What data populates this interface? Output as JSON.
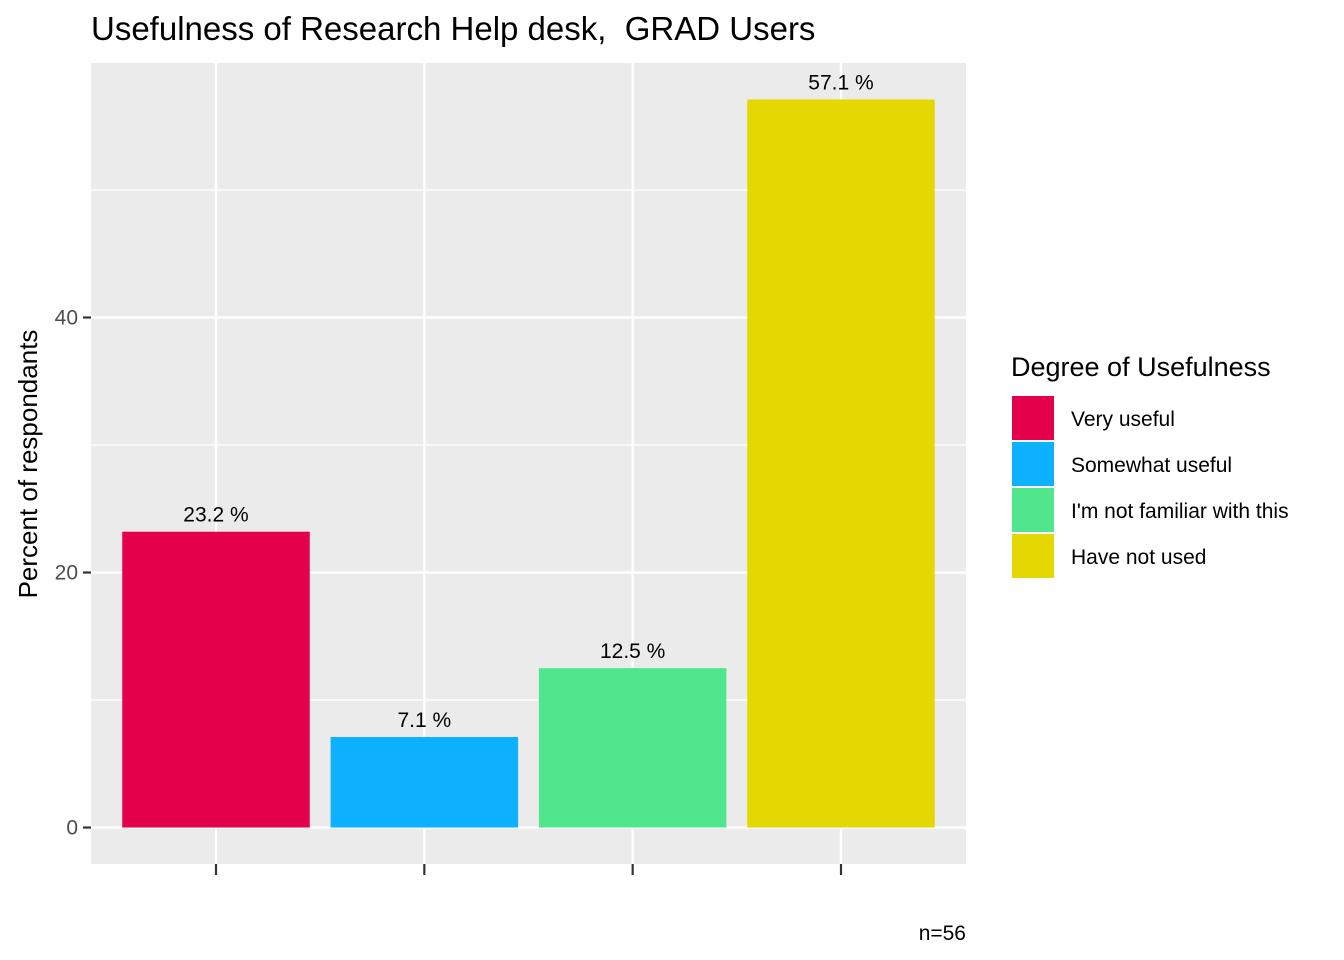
{
  "chart_data": {
    "type": "bar",
    "title": "Usefulness of Research Help desk,  GRAD Users",
    "xlabel": "",
    "ylabel": "Percent of respondants",
    "categories": [
      "Very useful",
      "Somewhat useful",
      "I'm not familiar with this",
      "Have not used"
    ],
    "values": [
      23.2,
      7.1,
      12.5,
      57.1
    ],
    "data_labels": [
      "23.2 %",
      "7.1 %",
      "12.5 %",
      "57.1 %"
    ],
    "colors": [
      "#E5004B",
      "#0CB2FF",
      "#50E68E",
      "#E5D800"
    ],
    "ylim": [
      -2.86,
      59.96
    ],
    "yticks": [
      0,
      20,
      40
    ],
    "ytick_labels": [
      "0",
      "20",
      "40"
    ],
    "grid": true,
    "legend": {
      "title": "Degree of Usefulness",
      "position": "right",
      "entries": [
        "Very useful",
        "Somewhat useful",
        "I'm not familiar with this",
        "Have not used"
      ]
    },
    "caption": "n=56"
  }
}
